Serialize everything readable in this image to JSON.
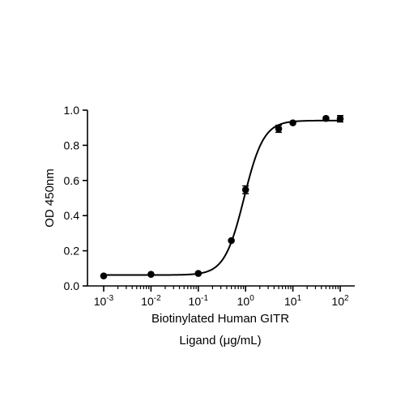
{
  "chart_data": {
    "type": "scatter",
    "xscale": "log",
    "ylabel": "OD 450nm",
    "xlabel_lines": [
      "Biotinylated Human GITR",
      "Ligand (μg/mL)"
    ],
    "xlim": [
      0.001,
      100
    ],
    "ylim": [
      0,
      1.0
    ],
    "x_ticks": [
      {
        "value": 0.001,
        "base": "10",
        "exp": "-3"
      },
      {
        "value": 0.01,
        "base": "10",
        "exp": "-2"
      },
      {
        "value": 0.1,
        "base": "10",
        "exp": "-1"
      },
      {
        "value": 1,
        "base": "10",
        "exp": "0"
      },
      {
        "value": 10,
        "base": "10",
        "exp": "1"
      },
      {
        "value": 100,
        "base": "10",
        "exp": "2"
      }
    ],
    "y_ticks": [
      {
        "value": 0.0,
        "label": "0.0"
      },
      {
        "value": 0.2,
        "label": "0.2"
      },
      {
        "value": 0.4,
        "label": "0.4"
      },
      {
        "value": 0.6,
        "label": "0.6"
      },
      {
        "value": 0.8,
        "label": "0.8"
      },
      {
        "value": 1.0,
        "label": "1.0"
      }
    ],
    "points": [
      {
        "x": 0.001,
        "y": 0.057,
        "err": 0
      },
      {
        "x": 0.01,
        "y": 0.066,
        "err": 0
      },
      {
        "x": 0.1,
        "y": 0.071,
        "err": 0
      },
      {
        "x": 0.5,
        "y": 0.258,
        "err": 0
      },
      {
        "x": 1,
        "y": 0.547,
        "err": 0.022
      },
      {
        "x": 5,
        "y": 0.894,
        "err": 0.02
      },
      {
        "x": 10,
        "y": 0.928,
        "err": 0
      },
      {
        "x": 50,
        "y": 0.953,
        "err": 0
      },
      {
        "x": 100,
        "y": 0.951,
        "err": 0.018
      }
    ],
    "fit": {
      "bottom": 0.062,
      "top": 0.941,
      "ec50": 0.93,
      "hill": 2.1
    },
    "color": "#000000"
  }
}
